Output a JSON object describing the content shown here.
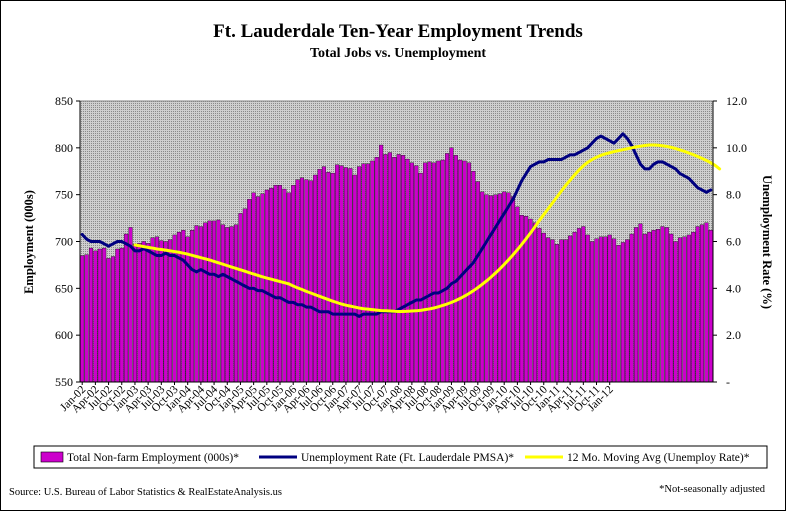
{
  "chart_data": {
    "type": "bar",
    "title": "Ft. Lauderdale Ten-Year Employment Trends",
    "subtitle": "Total Jobs vs. Unemployment",
    "ylabel_left": "Employment (000s)",
    "ylabel_right": "Unemployment Rate (%)",
    "ylim_left": [
      550,
      850
    ],
    "ylim_right": [
      0,
      12
    ],
    "yticks_left": [
      "550",
      "600",
      "650",
      "700",
      "750",
      "800",
      "850"
    ],
    "yticks_right": [
      "-",
      "2.0",
      "4.0",
      "6.0",
      "8.0",
      "10.0",
      "12.0"
    ],
    "x_tick_labels": [
      "Jan-02",
      "Apr-02",
      "Jul-02",
      "Oct-02",
      "Jan-03",
      "Apr-03",
      "Jul-03",
      "Oct-03",
      "Jan-04",
      "Apr-04",
      "Jul-04",
      "Oct-04",
      "Jan-05",
      "Apr-05",
      "Jul-05",
      "Oct-05",
      "Jan-06",
      "Apr-06",
      "Jul-06",
      "Oct-06",
      "Jan-07",
      "Apr-07",
      "Jul-07",
      "Oct-07",
      "Jan-08",
      "Apr-08",
      "Jul-08",
      "Oct-08",
      "Jan-09",
      "Apr-09",
      "Jul-09",
      "Oct-09",
      "Jan-10",
      "Apr-10",
      "Jul-10",
      "Oct-10",
      "Jan-11",
      "Apr-11",
      "Jul-11",
      "Oct-11",
      "Jan-12"
    ],
    "grid": false,
    "plot_background": "gray-dotted",
    "legend_position": "bottom",
    "series": [
      {
        "name": "Total Non-farm Employment (000s)*",
        "kind": "bar",
        "axis": "left",
        "color": "#CC00CC",
        "values": [
          685,
          686,
          693,
          690,
          692,
          693,
          682,
          684,
          692,
          693,
          708,
          715,
          697,
          698,
          700,
          698,
          704,
          705,
          701,
          700,
          702,
          707,
          710,
          712,
          705,
          712,
          717,
          716,
          720,
          722,
          722,
          723,
          718,
          715,
          716,
          718,
          730,
          735,
          745,
          752,
          748,
          751,
          755,
          757,
          760,
          760,
          756,
          752,
          760,
          766,
          768,
          766,
          765,
          771,
          777,
          780,
          774,
          773,
          782,
          781,
          779,
          778,
          771,
          780,
          783,
          783,
          786,
          790,
          803,
          793,
          795,
          790,
          793,
          792,
          788,
          784,
          781,
          773,
          784,
          785,
          784,
          786,
          787,
          794,
          800,
          792,
          787,
          786,
          784,
          775,
          764,
          753,
          750,
          749,
          750,
          751,
          753,
          752,
          748,
          737,
          728,
          727,
          724,
          720,
          714,
          709,
          704,
          702,
          697,
          702,
          702,
          706,
          710,
          714,
          716,
          707,
          700,
          703,
          705,
          705,
          707,
          703,
          696,
          699,
          702,
          708,
          715,
          719,
          708,
          710,
          712,
          713,
          716,
          715,
          708,
          700,
          704,
          705,
          707,
          710,
          716,
          718,
          720,
          712
        ]
      },
      {
        "name": "Unemployment Rate (Ft. Lauderdale PMSA)*",
        "kind": "line",
        "axis": "right",
        "color": "#000080",
        "values": [
          6.3,
          6.1,
          6.0,
          6.0,
          6.0,
          5.9,
          5.8,
          5.9,
          6.0,
          6.0,
          5.9,
          5.8,
          5.6,
          5.6,
          5.7,
          5.6,
          5.5,
          5.4,
          5.4,
          5.5,
          5.4,
          5.4,
          5.3,
          5.2,
          5.0,
          4.8,
          4.7,
          4.8,
          4.7,
          4.6,
          4.6,
          4.5,
          4.6,
          4.5,
          4.4,
          4.3,
          4.2,
          4.1,
          4.0,
          4.0,
          3.9,
          3.9,
          3.8,
          3.7,
          3.6,
          3.6,
          3.5,
          3.4,
          3.4,
          3.3,
          3.3,
          3.2,
          3.2,
          3.1,
          3.0,
          3.0,
          3.0,
          2.9,
          2.9,
          2.9,
          2.9,
          2.9,
          2.9,
          2.8,
          2.9,
          2.9,
          2.9,
          2.9,
          3.0,
          3.0,
          3.0,
          3.0,
          3.1,
          3.2,
          3.3,
          3.4,
          3.5,
          3.5,
          3.6,
          3.7,
          3.8,
          3.8,
          3.9,
          4.0,
          4.2,
          4.3,
          4.5,
          4.7,
          4.9,
          5.1,
          5.4,
          5.7,
          6.0,
          6.3,
          6.6,
          6.9,
          7.2,
          7.5,
          7.8,
          8.2,
          8.6,
          8.9,
          9.2,
          9.3,
          9.4,
          9.4,
          9.5,
          9.5,
          9.5,
          9.5,
          9.6,
          9.7,
          9.7,
          9.8,
          9.9,
          10.0,
          10.2,
          10.4,
          10.5,
          10.4,
          10.3,
          10.2,
          10.4,
          10.6,
          10.4,
          10.1,
          9.7,
          9.3,
          9.1,
          9.1,
          9.3,
          9.4,
          9.4,
          9.3,
          9.2,
          9.1,
          8.9,
          8.8,
          8.7,
          8.5,
          8.3,
          8.2,
          8.1,
          8.2
        ]
      },
      {
        "name": "12 Mo. Moving Avg (Unemploy Rate)*",
        "kind": "line",
        "axis": "right",
        "color": "#FFFF00",
        "start_index": 12,
        "values": [
          5.85,
          5.82,
          5.78,
          5.75,
          5.72,
          5.68,
          5.66,
          5.63,
          5.6,
          5.57,
          5.54,
          5.5,
          5.46,
          5.41,
          5.36,
          5.31,
          5.26,
          5.21,
          5.15,
          5.09,
          5.03,
          4.97,
          4.91,
          4.85,
          4.79,
          4.73,
          4.67,
          4.61,
          4.55,
          4.49,
          4.44,
          4.39,
          4.34,
          4.29,
          4.24,
          4.19,
          4.1,
          4.02,
          3.95,
          3.87,
          3.8,
          3.73,
          3.66,
          3.59,
          3.52,
          3.45,
          3.39,
          3.33,
          3.28,
          3.24,
          3.2,
          3.16,
          3.13,
          3.11,
          3.09,
          3.07,
          3.05,
          3.04,
          3.03,
          3.02,
          3.01,
          3.01,
          3.02,
          3.03,
          3.04,
          3.06,
          3.09,
          3.12,
          3.16,
          3.21,
          3.27,
          3.33,
          3.4,
          3.48,
          3.57,
          3.67,
          3.78,
          3.9,
          4.03,
          4.17,
          4.32,
          4.48,
          4.65,
          4.83,
          5.02,
          5.22,
          5.43,
          5.65,
          5.88,
          6.12,
          6.37,
          6.63,
          6.9,
          7.15,
          7.4,
          7.65,
          7.9,
          8.15,
          8.4,
          8.62,
          8.84,
          9.05,
          9.23,
          9.38,
          9.5,
          9.6,
          9.68,
          9.74,
          9.79,
          9.84,
          9.88,
          9.92,
          9.96,
          10.0,
          10.04,
          10.07,
          10.1,
          10.12,
          10.12,
          10.11,
          10.09,
          10.06,
          10.02,
          9.97,
          9.91,
          9.85,
          9.78,
          9.71,
          9.63,
          9.55,
          9.46,
          9.36,
          9.25,
          9.1
        ]
      }
    ]
  },
  "source_text": "Source: U.S. Bureau of Labor Statistics & RealEstateAnalysis.us",
  "footnote": "*Not-seasonally adjusted"
}
